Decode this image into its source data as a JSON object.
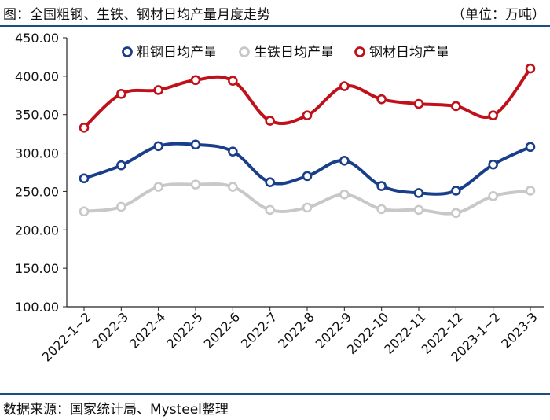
{
  "header": {
    "title": "图：全国粗钢、生铁、钢材日均产量月度走势",
    "unit": "（单位：万吨）"
  },
  "footer": {
    "source": "数据来源：国家统计局、Mysteel整理"
  },
  "chart_data": {
    "type": "line",
    "title": "图：全国粗钢、生铁、钢材日均产量月度走势",
    "unit": "（单位：万吨）",
    "categories": [
      "2022-1~2",
      "2022-3",
      "2022-4",
      "2022-5",
      "2022-6",
      "2022-7",
      "2022-8",
      "2022-9",
      "2022-10",
      "2022-11",
      "2022-12",
      "2023-1~2",
      "2023-3"
    ],
    "ylim": [
      100,
      450
    ],
    "yticks": [
      100,
      150,
      200,
      250,
      300,
      350,
      400,
      450
    ],
    "ytick_labels": [
      "100.00",
      "150.00",
      "200.00",
      "250.00",
      "300.00",
      "350.00",
      "400.00",
      "450.00"
    ],
    "grid": false,
    "legend_position": "top",
    "series": [
      {
        "name": "粗钢日均产量",
        "color": "#1a3f8a",
        "values": [
          267,
          284,
          309,
          311,
          302,
          262,
          270,
          290,
          257,
          248,
          251,
          285,
          308
        ]
      },
      {
        "name": "生铁日均产量",
        "color": "#c8c8c8",
        "values": [
          224,
          230,
          256,
          259,
          256,
          226,
          229,
          246,
          227,
          226,
          222,
          244,
          251
        ]
      },
      {
        "name": "钢材日均产量",
        "color": "#c0111b",
        "values": [
          333,
          377,
          382,
          395,
          394,
          342,
          349,
          387,
          370,
          364,
          361,
          349,
          410
        ]
      }
    ]
  }
}
